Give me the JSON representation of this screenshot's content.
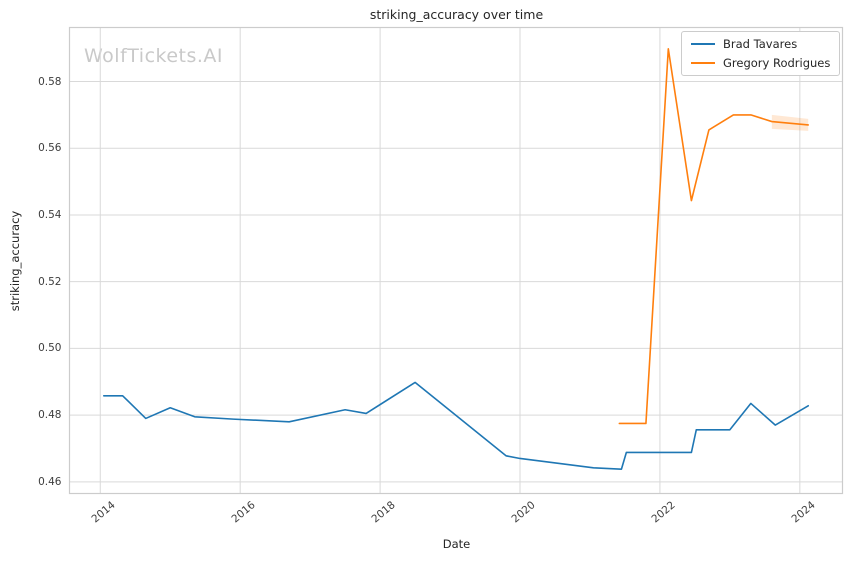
{
  "watermark": {
    "text": "WolfTickets.AI"
  },
  "chart_data": {
    "type": "line",
    "title": "striking_accuracy over time",
    "xlabel": "Date",
    "ylabel": "striking_accuracy",
    "xlim": [
      2013.56,
      2024.61
    ],
    "ylim": [
      0.4565,
      0.5962
    ],
    "xticks": [
      2014,
      2016,
      2018,
      2020,
      2022,
      2024
    ],
    "yticks": [
      0.46,
      0.48,
      0.5,
      0.52,
      0.54,
      0.56,
      0.58
    ],
    "grid": true,
    "legend_position": "upper right",
    "series": [
      {
        "name": "Brad Tavares",
        "color": "#1f77b4",
        "points": [
          [
            2014.05,
            0.4858
          ],
          [
            2014.32,
            0.4858
          ],
          [
            2014.65,
            0.479
          ],
          [
            2015.0,
            0.4822
          ],
          [
            2015.35,
            0.4795
          ],
          [
            2015.9,
            0.4788
          ],
          [
            2016.7,
            0.478
          ],
          [
            2017.5,
            0.4816
          ],
          [
            2017.8,
            0.4805
          ],
          [
            2018.5,
            0.4898
          ],
          [
            2019.8,
            0.4678
          ],
          [
            2020.0,
            0.467
          ],
          [
            2021.05,
            0.4642
          ],
          [
            2021.45,
            0.4638
          ],
          [
            2021.52,
            0.4688
          ],
          [
            2022.45,
            0.4688
          ],
          [
            2022.52,
            0.4756
          ],
          [
            2023.0,
            0.4756
          ],
          [
            2023.3,
            0.4835
          ],
          [
            2023.65,
            0.477
          ],
          [
            2024.12,
            0.4828
          ]
        ]
      },
      {
        "name": "Gregory Rodrigues",
        "color": "#ff7f0e",
        "points": [
          [
            2021.42,
            0.4775
          ],
          [
            2021.8,
            0.4775
          ],
          [
            2022.12,
            0.5898
          ],
          [
            2022.45,
            0.5443
          ],
          [
            2022.7,
            0.5655
          ],
          [
            2023.05,
            0.57
          ],
          [
            2023.3,
            0.57
          ],
          [
            2023.6,
            0.568
          ],
          [
            2024.12,
            0.567
          ]
        ],
        "band": {
          "x": [
            2023.6,
            2024.12
          ],
          "upper": [
            0.57,
            0.5688
          ],
          "lower": [
            0.5658,
            0.5652
          ],
          "opacity": 0.18
        }
      }
    ]
  }
}
